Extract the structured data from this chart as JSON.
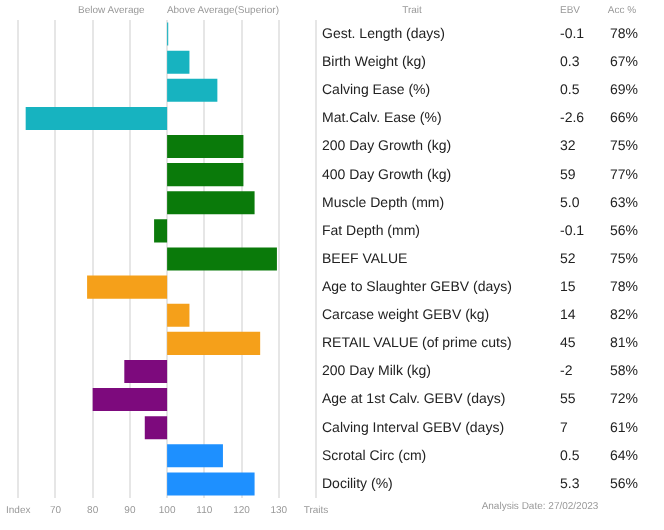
{
  "chart_data": {
    "type": "bar",
    "orientation": "horizontal",
    "categories": [
      "Gest. Length (days)",
      "Birth Weight (kg)",
      "Calving Ease (%)",
      "Mat.Calv. Ease (%)",
      "200 Day Growth (kg)",
      "400 Day Growth (kg)",
      "Muscle Depth (mm)",
      "Fat Depth (mm)",
      "BEEF VALUE",
      "Age to Slaughter GEBV (days)",
      "Carcase weight GEBV (kg)",
      "RETAIL VALUE (of prime cuts)",
      "200 Day Milk (kg)",
      "Age at 1st Calv. GEBV (days)",
      "Calving Interval GEBV (days)",
      "Scrotal Circ (cm)",
      "Docility (%)"
    ],
    "values": [
      0.3,
      6,
      13.5,
      -38,
      20.5,
      20.5,
      23.5,
      -3.5,
      29.5,
      -21.5,
      6,
      25,
      -11.5,
      -20,
      -6,
      15,
      23.5
    ],
    "base": [
      100,
      100,
      100,
      100,
      100,
      100,
      100,
      100,
      100,
      100,
      100,
      100,
      100,
      100,
      100,
      100,
      100
    ],
    "colors": [
      "#17b3c0",
      "#17b3c0",
      "#17b3c0",
      "#17b3c0",
      "#0a7a0a",
      "#0a7a0a",
      "#0a7a0a",
      "#0a7a0a",
      "#0a7a0a",
      "#f5a01a",
      "#f5a01a",
      "#f5a01a",
      "#7d0a7d",
      "#7d0a7d",
      "#7d0a7d",
      "#1e90ff",
      "#1e90ff"
    ],
    "xlim": [
      60,
      140
    ],
    "xticks": [
      {
        "value": 60,
        "label": "Index"
      },
      70,
      80,
      90,
      100,
      110,
      120,
      130,
      {
        "value": 140,
        "label": "Traits"
      }
    ],
    "grid": "x",
    "annotations": [
      "Below Average",
      "Above Average(Superior)",
      "Trait",
      "EBV",
      "Acc %",
      "Analysis Date: 27/02/2023",
      "-0.1",
      "78%",
      "0.3",
      "67%",
      "0.5",
      "69%",
      "-2.6",
      "66%",
      "32",
      "75%",
      "59",
      "77%",
      "5.0",
      "63%",
      "-0.1",
      "56%",
      "52",
      "75%",
      "15",
      "78%",
      "14",
      "82%",
      "45",
      "81%",
      "-2",
      "58%",
      "55",
      "72%",
      "7",
      "61%",
      "0.5",
      "64%",
      "5.3",
      "56%"
    ]
  }
}
